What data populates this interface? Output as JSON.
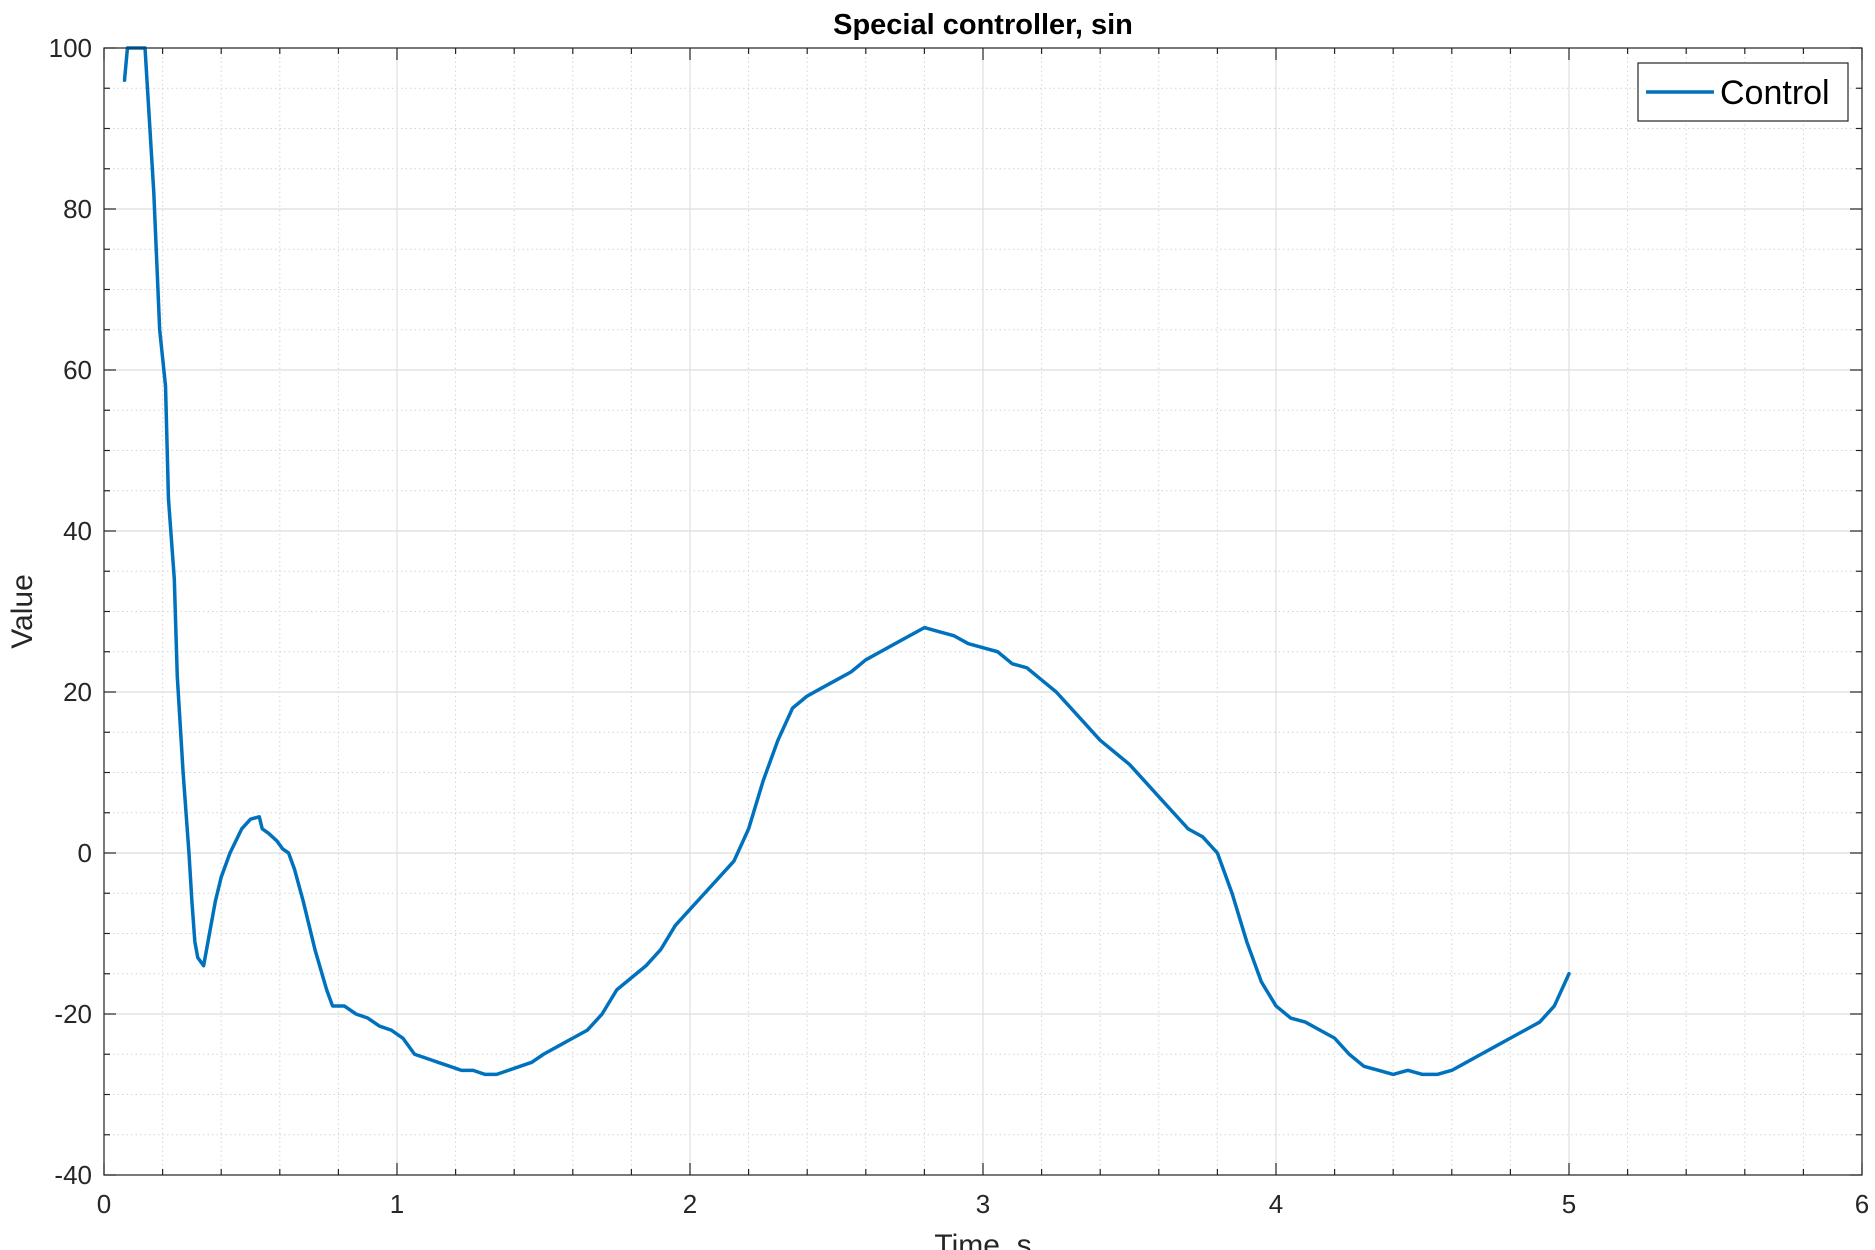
{
  "chart_data": {
    "type": "line",
    "title": "Special controller, sin",
    "xlabel": "Time, s",
    "ylabel": "Value",
    "xlim": [
      0,
      6
    ],
    "ylim": [
      -40,
      100
    ],
    "x_ticks": [
      0,
      1,
      2,
      3,
      4,
      5,
      6
    ],
    "y_ticks": [
      -40,
      -20,
      0,
      20,
      40,
      60,
      80,
      100
    ],
    "x_tick_labels": [
      "0",
      "1",
      "2",
      "3",
      "4",
      "5",
      "6"
    ],
    "y_tick_labels": [
      "-40",
      "-20",
      "0",
      "20",
      "40",
      "60",
      "80",
      "100"
    ],
    "grid": true,
    "minor_grid": true,
    "legend_position": "top-right",
    "series": [
      {
        "name": "Control",
        "color": "#0072BD",
        "points": [
          [
            0.07,
            96
          ],
          [
            0.08,
            100
          ],
          [
            0.1,
            100
          ],
          [
            0.12,
            100
          ],
          [
            0.14,
            100
          ],
          [
            0.17,
            82
          ],
          [
            0.19,
            65
          ],
          [
            0.21,
            58
          ],
          [
            0.22,
            44
          ],
          [
            0.24,
            34
          ],
          [
            0.25,
            22
          ],
          [
            0.27,
            10
          ],
          [
            0.29,
            0
          ],
          [
            0.3,
            -6
          ],
          [
            0.31,
            -11
          ],
          [
            0.32,
            -13
          ],
          [
            0.34,
            -14
          ],
          [
            0.36,
            -10
          ],
          [
            0.38,
            -6
          ],
          [
            0.4,
            -3
          ],
          [
            0.43,
            0
          ],
          [
            0.47,
            3
          ],
          [
            0.5,
            4.2
          ],
          [
            0.53,
            4.5
          ],
          [
            0.54,
            3
          ],
          [
            0.56,
            2.5
          ],
          [
            0.59,
            1.5
          ],
          [
            0.61,
            0.5
          ],
          [
            0.63,
            0
          ],
          [
            0.65,
            -2
          ],
          [
            0.68,
            -6
          ],
          [
            0.72,
            -12
          ],
          [
            0.76,
            -17
          ],
          [
            0.78,
            -19
          ],
          [
            0.82,
            -19
          ],
          [
            0.86,
            -20
          ],
          [
            0.9,
            -20.5
          ],
          [
            0.94,
            -21.5
          ],
          [
            0.98,
            -22
          ],
          [
            1.02,
            -23
          ],
          [
            1.06,
            -25
          ],
          [
            1.1,
            -25.5
          ],
          [
            1.14,
            -26
          ],
          [
            1.18,
            -26.5
          ],
          [
            1.22,
            -27
          ],
          [
            1.26,
            -27
          ],
          [
            1.3,
            -27.5
          ],
          [
            1.34,
            -27.5
          ],
          [
            1.38,
            -27
          ],
          [
            1.42,
            -26.5
          ],
          [
            1.46,
            -26
          ],
          [
            1.5,
            -25
          ],
          [
            1.55,
            -24
          ],
          [
            1.6,
            -23
          ],
          [
            1.65,
            -22
          ],
          [
            1.7,
            -20
          ],
          [
            1.75,
            -17
          ],
          [
            1.8,
            -15.5
          ],
          [
            1.85,
            -14
          ],
          [
            1.9,
            -12
          ],
          [
            1.95,
            -9
          ],
          [
            2.0,
            -7
          ],
          [
            2.05,
            -5
          ],
          [
            2.1,
            -3
          ],
          [
            2.15,
            -1
          ],
          [
            2.2,
            3
          ],
          [
            2.25,
            9
          ],
          [
            2.3,
            14
          ],
          [
            2.35,
            18
          ],
          [
            2.4,
            19.5
          ],
          [
            2.45,
            20.5
          ],
          [
            2.5,
            21.5
          ],
          [
            2.55,
            22.5
          ],
          [
            2.6,
            24
          ],
          [
            2.65,
            25
          ],
          [
            2.7,
            26
          ],
          [
            2.75,
            27
          ],
          [
            2.8,
            28
          ],
          [
            2.85,
            27.5
          ],
          [
            2.9,
            27
          ],
          [
            2.95,
            26
          ],
          [
            3.0,
            25.5
          ],
          [
            3.05,
            25
          ],
          [
            3.1,
            23.5
          ],
          [
            3.15,
            23
          ],
          [
            3.2,
            21.5
          ],
          [
            3.25,
            20
          ],
          [
            3.3,
            18
          ],
          [
            3.35,
            16
          ],
          [
            3.4,
            14
          ],
          [
            3.45,
            12.5
          ],
          [
            3.5,
            11
          ],
          [
            3.55,
            9
          ],
          [
            3.6,
            7
          ],
          [
            3.65,
            5
          ],
          [
            3.7,
            3
          ],
          [
            3.75,
            2
          ],
          [
            3.8,
            0
          ],
          [
            3.85,
            -5
          ],
          [
            3.9,
            -11
          ],
          [
            3.95,
            -16
          ],
          [
            4.0,
            -19
          ],
          [
            4.05,
            -20.5
          ],
          [
            4.1,
            -21
          ],
          [
            4.15,
            -22
          ],
          [
            4.2,
            -23
          ],
          [
            4.25,
            -25
          ],
          [
            4.3,
            -26.5
          ],
          [
            4.35,
            -27
          ],
          [
            4.4,
            -27.5
          ],
          [
            4.45,
            -27
          ],
          [
            4.5,
            -27.5
          ],
          [
            4.55,
            -27.5
          ],
          [
            4.6,
            -27
          ],
          [
            4.65,
            -26
          ],
          [
            4.7,
            -25
          ],
          [
            4.75,
            -24
          ],
          [
            4.8,
            -23
          ],
          [
            4.85,
            -22
          ],
          [
            4.9,
            -21
          ],
          [
            4.95,
            -19
          ],
          [
            5.0,
            -15
          ]
        ]
      }
    ]
  }
}
